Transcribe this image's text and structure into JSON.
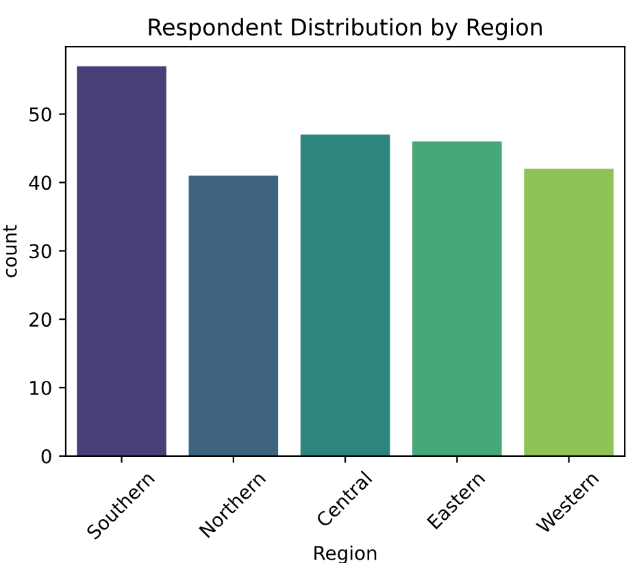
{
  "chart_data": {
    "type": "bar",
    "title": "Respondent Distribution by Region",
    "xlabel": "Region",
    "ylabel": "count",
    "categories": [
      "Southern",
      "Northern",
      "Central",
      "Eastern",
      "Western"
    ],
    "values": [
      57,
      41,
      47,
      46,
      42
    ],
    "colors": [
      "#4b3f78",
      "#3e6480",
      "#2e8580",
      "#46a878",
      "#8ec456"
    ],
    "ylim": [
      0,
      59.85
    ],
    "yticks": [
      0,
      10,
      20,
      30,
      40,
      50
    ],
    "grid": false
  }
}
